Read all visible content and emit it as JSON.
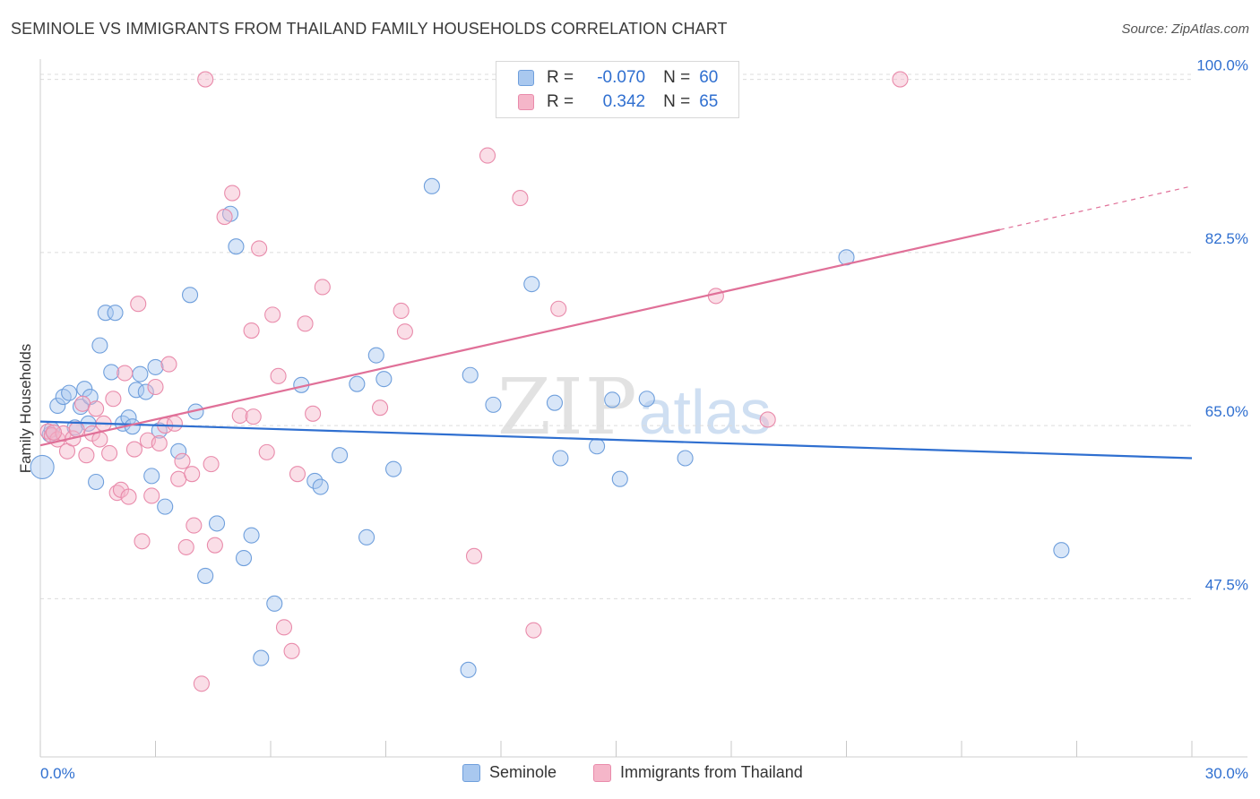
{
  "header": {
    "title": "SEMINOLE VS IMMIGRANTS FROM THAILAND FAMILY HOUSEHOLDS CORRELATION CHART",
    "source": "Source: ZipAtlas.com"
  },
  "watermark": {
    "zip": "ZIP",
    "atlas": "atlas"
  },
  "legend_top": {
    "rows": [
      {
        "r_label": "R =",
        "r_value": "-0.070",
        "n_label": "N =",
        "n_value": "60",
        "color": "#a9c8ef"
      },
      {
        "r_label": "R =",
        "r_value": "0.342",
        "n_label": "N =",
        "n_value": "65",
        "color": "#f5b6c9"
      }
    ]
  },
  "legend_bottom": {
    "items": [
      "Seminole",
      "Immigrants from Thailand"
    ]
  },
  "colors": {
    "seminole_fill": "#a9c8ef",
    "seminole_stroke": "#6f9fdc",
    "seminole_line": "#2f6fd0",
    "thailand_fill": "#f5b6c9",
    "thailand_stroke": "#e98bab",
    "thailand_line": "#e07098",
    "tick_label": "#2f6fd0",
    "grid": "#dcdcdc"
  },
  "chart_data": {
    "type": "scatter",
    "title": "SEMINOLE VS IMMIGRANTS FROM THAILAND FAMILY HOUSEHOLDS CORRELATION CHART",
    "xlabel": "",
    "ylabel": "Family Households",
    "xlim": [
      0,
      30
    ],
    "ylim": [
      32,
      102
    ],
    "x_tick_labels": [
      "0.0%",
      "30.0%"
    ],
    "y_ticks": [
      47.5,
      65.0,
      82.5,
      100.0
    ],
    "y_tick_labels": [
      "47.5%",
      "65.0%",
      "82.5%",
      "100.0%"
    ],
    "grid": true,
    "legend_position": "top-center",
    "series": [
      {
        "name": "Seminole",
        "trend": {
          "x": [
            0,
            30
          ],
          "y": [
            65.4,
            61.7
          ],
          "dashed_from": null
        },
        "points": [
          [
            0.05,
            60.8
          ],
          [
            0.25,
            64.1
          ],
          [
            0.3,
            64.6
          ],
          [
            0.45,
            67.0
          ],
          [
            0.6,
            67.9
          ],
          [
            0.75,
            68.3
          ],
          [
            0.9,
            64.8
          ],
          [
            1.05,
            66.9
          ],
          [
            1.15,
            68.7
          ],
          [
            1.3,
            67.9
          ],
          [
            1.45,
            59.3
          ],
          [
            1.55,
            73.1
          ],
          [
            1.7,
            76.4
          ],
          [
            1.85,
            70.4
          ],
          [
            1.95,
            76.4
          ],
          [
            2.15,
            65.2
          ],
          [
            2.3,
            65.8
          ],
          [
            2.4,
            64.9
          ],
          [
            2.5,
            68.6
          ],
          [
            2.6,
            70.2
          ],
          [
            2.75,
            68.4
          ],
          [
            2.9,
            59.9
          ],
          [
            3.0,
            70.9
          ],
          [
            3.1,
            64.5
          ],
          [
            3.25,
            56.8
          ],
          [
            3.6,
            62.4
          ],
          [
            3.9,
            78.2
          ],
          [
            4.05,
            66.4
          ],
          [
            4.3,
            49.8
          ],
          [
            4.6,
            55.1
          ],
          [
            4.95,
            86.4
          ],
          [
            5.1,
            83.1
          ],
          [
            5.3,
            51.6
          ],
          [
            5.5,
            53.9
          ],
          [
            5.75,
            41.5
          ],
          [
            6.1,
            47.0
          ],
          [
            6.8,
            69.1
          ],
          [
            7.15,
            59.4
          ],
          [
            7.3,
            58.8
          ],
          [
            7.8,
            62.0
          ],
          [
            8.25,
            69.2
          ],
          [
            8.5,
            53.7
          ],
          [
            8.75,
            72.1
          ],
          [
            8.95,
            69.7
          ],
          [
            9.2,
            60.6
          ],
          [
            10.2,
            89.2
          ],
          [
            11.2,
            70.1
          ],
          [
            11.15,
            40.3
          ],
          [
            11.8,
            67.1
          ],
          [
            12.8,
            79.3
          ],
          [
            13.4,
            67.3
          ],
          [
            13.55,
            61.7
          ],
          [
            14.5,
            62.9
          ],
          [
            14.9,
            67.6
          ],
          [
            15.1,
            59.6
          ],
          [
            15.8,
            67.7
          ],
          [
            16.8,
            61.7
          ],
          [
            21.0,
            82.0
          ],
          [
            26.6,
            52.4
          ],
          [
            1.25,
            65.2
          ]
        ]
      },
      {
        "name": "Immigrants from Thailand",
        "trend": {
          "x": [
            0,
            25.0,
            30
          ],
          "y": [
            63.0,
            84.8,
            89.2
          ],
          "dashed_from": 25.0
        },
        "points": [
          [
            0.2,
            64.4
          ],
          [
            0.3,
            64.0
          ],
          [
            0.45,
            63.6
          ],
          [
            0.6,
            64.2
          ],
          [
            0.7,
            62.4
          ],
          [
            0.85,
            63.7
          ],
          [
            0.95,
            64.6
          ],
          [
            1.1,
            67.2
          ],
          [
            1.2,
            62.0
          ],
          [
            1.35,
            64.2
          ],
          [
            1.45,
            66.7
          ],
          [
            1.55,
            63.6
          ],
          [
            1.65,
            65.2
          ],
          [
            1.8,
            62.2
          ],
          [
            1.9,
            67.7
          ],
          [
            2.0,
            58.2
          ],
          [
            2.1,
            58.5
          ],
          [
            2.2,
            70.3
          ],
          [
            2.3,
            57.8
          ],
          [
            2.45,
            62.6
          ],
          [
            2.55,
            77.3
          ],
          [
            2.65,
            53.3
          ],
          [
            2.8,
            63.5
          ],
          [
            2.9,
            57.9
          ],
          [
            3.0,
            68.9
          ],
          [
            3.1,
            63.2
          ],
          [
            3.25,
            65.0
          ],
          [
            3.35,
            71.2
          ],
          [
            3.5,
            65.2
          ],
          [
            3.6,
            59.6
          ],
          [
            3.7,
            61.4
          ],
          [
            3.8,
            52.7
          ],
          [
            3.95,
            60.1
          ],
          [
            4.0,
            54.9
          ],
          [
            4.2,
            38.9
          ],
          [
            4.3,
            100.0
          ],
          [
            4.45,
            61.1
          ],
          [
            4.55,
            52.9
          ],
          [
            4.8,
            86.1
          ],
          [
            5.0,
            88.5
          ],
          [
            5.2,
            66.0
          ],
          [
            5.5,
            74.6
          ],
          [
            5.55,
            65.9
          ],
          [
            5.7,
            82.9
          ],
          [
            5.9,
            62.3
          ],
          [
            6.05,
            76.2
          ],
          [
            6.2,
            70.0
          ],
          [
            6.35,
            44.6
          ],
          [
            6.55,
            42.2
          ],
          [
            6.7,
            60.1
          ],
          [
            6.9,
            75.3
          ],
          [
            7.1,
            66.2
          ],
          [
            7.35,
            79.0
          ],
          [
            8.85,
            66.8
          ],
          [
            9.4,
            76.6
          ],
          [
            9.5,
            74.5
          ],
          [
            11.3,
            51.8
          ],
          [
            11.65,
            92.3
          ],
          [
            12.5,
            88.0
          ],
          [
            12.85,
            44.3
          ],
          [
            13.5,
            76.8
          ],
          [
            17.6,
            78.1
          ],
          [
            18.95,
            65.6
          ],
          [
            22.4,
            100.0
          ],
          [
            0.35,
            64.3
          ]
        ]
      }
    ]
  }
}
